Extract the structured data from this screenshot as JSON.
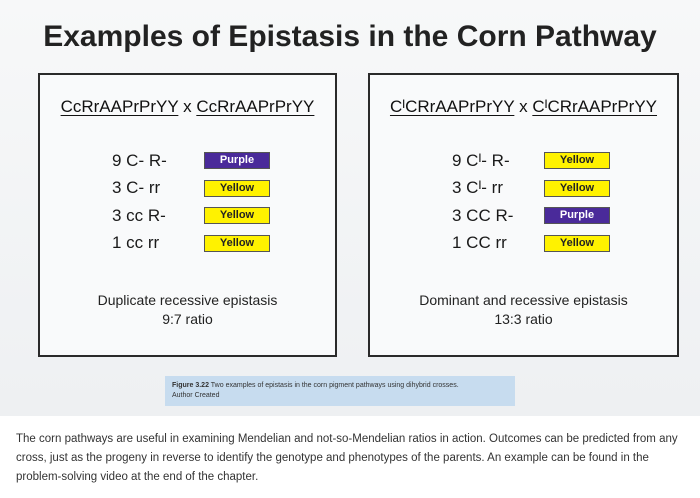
{
  "title": "Examples of Epistasis in the Corn Pathway",
  "left_box": {
    "cross_p1": "CcRrAAPrPrYY",
    "cross_x": "x",
    "cross_p2": "CcRrAAPrPrYY",
    "rows": [
      {
        "genotype": "9 C- R-",
        "phenotype": "Purple",
        "color": "#4a2a9a"
      },
      {
        "genotype": "3 C- rr",
        "phenotype": "Yellow",
        "color": "#fff200"
      },
      {
        "genotype": "3 cc R-",
        "phenotype": "Yellow",
        "color": "#fff200"
      },
      {
        "genotype": "1 cc rr",
        "phenotype": "Yellow",
        "color": "#fff200"
      }
    ],
    "description_line1": "Duplicate recessive epistasis",
    "description_line2": "9:7 ratio"
  },
  "right_box": {
    "cross_p1": "CᴵCRrAAPrPrYY",
    "cross_x": "x",
    "cross_p2": "CᴵCRrAAPrPrYY",
    "rows": [
      {
        "genotype": "9 Cᴵ- R-",
        "phenotype": "Yellow",
        "color": "#fff200"
      },
      {
        "genotype": "3 Cᴵ- rr",
        "phenotype": "Yellow",
        "color": "#fff200"
      },
      {
        "genotype": "3 CC R-",
        "phenotype": "Purple",
        "color": "#4a2a9a"
      },
      {
        "genotype": "1 CC rr",
        "phenotype": "Yellow",
        "color": "#fff200"
      }
    ],
    "description_line1": "Dominant and recessive epistasis",
    "description_line2": "13:3 ratio"
  },
  "caption": {
    "label": "Figure 3.22",
    "text": "Two examples of epistasis in the corn pigment pathways using dihybrid crosses.",
    "credit": "Author Created"
  },
  "paragraph": "The corn pathways are useful in examining Mendelian and not-so-Mendelian ratios in action. Outcomes can be predicted from any cross, just as the progeny in reverse to identify the genotype and phenotypes of the parents. An example can be found in the problem-solving video at the end of the chapter."
}
